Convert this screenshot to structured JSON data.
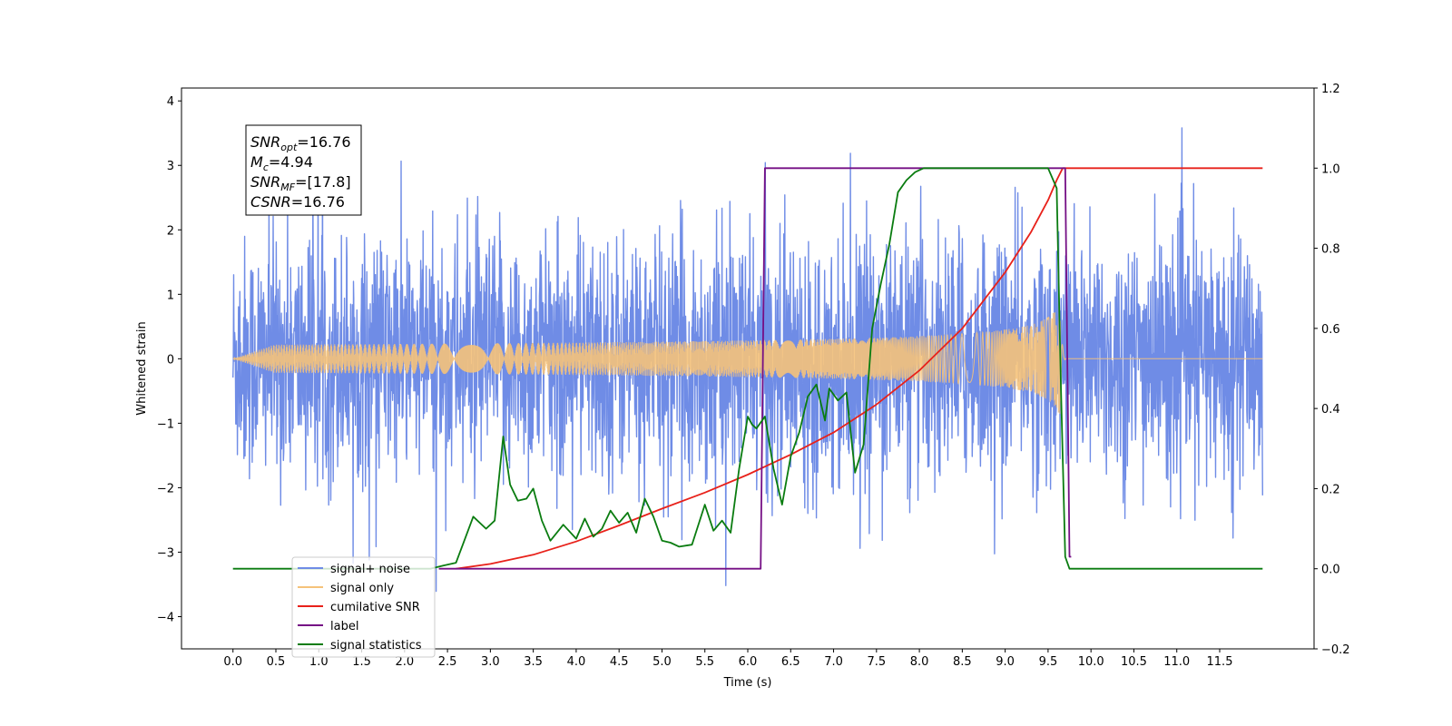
{
  "chart_data": {
    "type": "line",
    "xlabel": "Time (s)",
    "ylabel": "Whitened strain",
    "xlim": [
      -0.6,
      12.6
    ],
    "ylim": [
      -4.5,
      4.2
    ],
    "y2lim": [
      -0.2,
      1.2
    ],
    "x_ticks": [
      0.0,
      0.5,
      1.0,
      1.5,
      2.0,
      2.5,
      3.0,
      3.5,
      4.0,
      4.5,
      5.0,
      5.5,
      6.0,
      6.5,
      7.0,
      7.5,
      8.0,
      8.5,
      9.0,
      9.5,
      10.0,
      10.5,
      11.0,
      11.5
    ],
    "x_tick_labels": [
      "0.0",
      "0.5",
      "1.0",
      "1.5",
      "2.0",
      "2.5",
      "3.0",
      "3.5",
      "4.0",
      "4.5",
      "5.0",
      "5.5",
      "6.0",
      "6.5",
      "7.0",
      "7.5",
      "8.0",
      "8.5",
      "9.0",
      "9.5",
      "10.0",
      "10.5",
      "11.0",
      "11.5"
    ],
    "y_ticks": [
      -4,
      -3,
      -2,
      -1,
      0,
      1,
      2,
      3,
      4
    ],
    "y_tick_labels": [
      "−4",
      "−3",
      "−2",
      "−1",
      "0",
      "1",
      "2",
      "3",
      "4"
    ],
    "y2_ticks": [
      -0.2,
      0.0,
      0.2,
      0.4,
      0.6,
      0.8,
      1.0,
      1.2
    ],
    "y2_tick_labels": [
      "−0.2",
      "0.0",
      "0.2",
      "0.4",
      "0.6",
      "0.8",
      "1.0",
      "1.2"
    ],
    "grid": false,
    "legend_position": "bottom-left",
    "annotation": {
      "lines": [
        {
          "main": "SNR",
          "sub": "opt",
          "value": "=16.76"
        },
        {
          "main": "M",
          "sub": "c",
          "value": "=4.94"
        },
        {
          "main": "SNR",
          "sub": "MF",
          "value": "=[17.8]"
        },
        {
          "main": "CSNR",
          "sub": "",
          "value": "=16.76"
        }
      ]
    },
    "series": [
      {
        "name": "signal+ noise",
        "color": "#6f8ce6",
        "axis": "left",
        "kind": "noise",
        "x_range": [
          0.0,
          12.0
        ],
        "amplitude_typical": 1.3,
        "min": -4.1,
        "max": 3.8
      },
      {
        "name": "signal only",
        "color": "#f5c27a",
        "axis": "left",
        "kind": "chirp",
        "x_range": [
          0.0,
          12.0
        ],
        "merger_time": 9.65,
        "peak_amplitude": 0.95
      },
      {
        "name": "cumilative SNR",
        "color": "#e8211a",
        "axis": "right",
        "x": [
          2.6,
          3.0,
          3.5,
          4.0,
          4.5,
          5.0,
          5.5,
          6.0,
          6.5,
          7.0,
          7.5,
          8.0,
          8.5,
          9.0,
          9.3,
          9.5,
          9.6,
          9.67,
          9.7,
          10.0,
          11.0,
          12.0
        ],
        "y": [
          0.0,
          0.012,
          0.035,
          0.068,
          0.108,
          0.15,
          0.19,
          0.235,
          0.285,
          0.34,
          0.41,
          0.495,
          0.6,
          0.74,
          0.84,
          0.92,
          0.97,
          1.0,
          1.0,
          1.0,
          1.0,
          1.0
        ]
      },
      {
        "name": "label",
        "color": "#750f85",
        "axis": "right",
        "x": [
          2.4,
          6.15,
          6.2,
          9.7,
          9.75,
          9.77
        ],
        "y": [
          0.0,
          0.0,
          1.0,
          1.0,
          0.03,
          0.03
        ]
      },
      {
        "name": "signal statistics",
        "color": "#0a7c10",
        "axis": "right",
        "x": [
          0.0,
          2.3,
          2.45,
          2.6,
          2.8,
          2.95,
          3.05,
          3.15,
          3.23,
          3.32,
          3.42,
          3.5,
          3.6,
          3.7,
          3.85,
          4.0,
          4.1,
          4.2,
          4.3,
          4.4,
          4.5,
          4.6,
          4.7,
          4.8,
          4.9,
          5.0,
          5.1,
          5.2,
          5.35,
          5.5,
          5.6,
          5.7,
          5.8,
          5.9,
          6.0,
          6.05,
          6.1,
          6.2,
          6.3,
          6.4,
          6.5,
          6.6,
          6.7,
          6.8,
          6.9,
          6.95,
          7.05,
          7.15,
          7.25,
          7.35,
          7.45,
          7.55,
          7.65,
          7.75,
          7.85,
          7.95,
          8.05,
          8.15,
          9.5,
          9.6,
          9.65,
          9.7,
          9.75,
          12.0
        ],
        "y": [
          0.0,
          0.0,
          0.008,
          0.015,
          0.13,
          0.1,
          0.12,
          0.33,
          0.21,
          0.17,
          0.175,
          0.2,
          0.12,
          0.07,
          0.11,
          0.075,
          0.125,
          0.08,
          0.1,
          0.145,
          0.115,
          0.14,
          0.09,
          0.175,
          0.13,
          0.07,
          0.065,
          0.055,
          0.06,
          0.16,
          0.095,
          0.12,
          0.09,
          0.25,
          0.38,
          0.36,
          0.35,
          0.38,
          0.25,
          0.16,
          0.28,
          0.34,
          0.43,
          0.46,
          0.37,
          0.45,
          0.42,
          0.44,
          0.24,
          0.31,
          0.6,
          0.71,
          0.81,
          0.94,
          0.97,
          0.99,
          1.0,
          1.0,
          1.0,
          0.95,
          0.45,
          0.03,
          0.0,
          0.0
        ]
      }
    ]
  }
}
